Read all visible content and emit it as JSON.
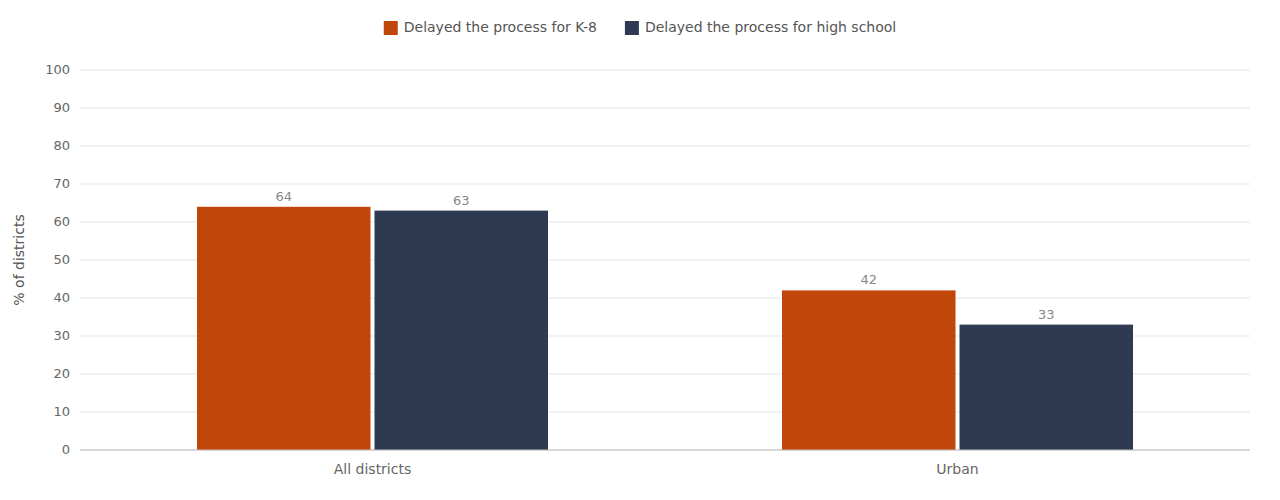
{
  "chart_data": {
    "type": "bar",
    "categories": [
      "All districts",
      "Urban"
    ],
    "series": [
      {
        "name": "Delayed the process for K-8",
        "color": "#C0460A",
        "values": [
          64,
          42
        ]
      },
      {
        "name": "Delayed the process for high school",
        "color": "#2E3A52",
        "values": [
          63,
          33
        ]
      }
    ],
    "ylabel": "% of districts",
    "ylim": [
      0,
      100
    ],
    "yticks": [
      0,
      10,
      20,
      30,
      40,
      50,
      60,
      70,
      80,
      90,
      100
    ],
    "grid": true,
    "legend": "top",
    "data_labels": true
  }
}
